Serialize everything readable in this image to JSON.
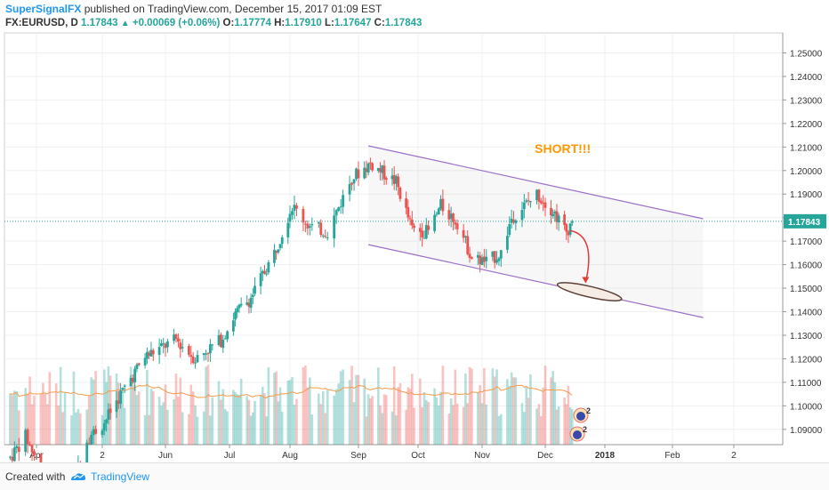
{
  "header": {
    "author": "SuperSignalFX",
    "published": "published on TradingView.com, December 15, 2017 01:09 EST",
    "symbol": "FX:EURUSD, D",
    "last": "1.17843",
    "change": "+0.00069 (+0.06%)",
    "open_label": "O:",
    "open": "1.17774",
    "high_label": "H:",
    "high": "1.17910",
    "low_label": "L:",
    "low": "1.17647",
    "close_label": "C:",
    "close": "1.17843"
  },
  "footer": {
    "created_with": "Created with",
    "brand": "TradingView"
  },
  "colors": {
    "up": "#26a69a",
    "down": "#ef5350",
    "channel": "#9c6fc9",
    "ma": "#f79a4a",
    "annotation": "#ff9800",
    "arrow": "#e53935",
    "last_price_tag": "#26a69a"
  },
  "chart_data": {
    "type": "candlestick",
    "symbol": "FX:EURUSD",
    "interval": "D",
    "x_ticks": [
      "Apr",
      "2",
      "Jun",
      "Jul",
      "Aug",
      "Sep",
      "Oct",
      "Nov",
      "Dec",
      "2018",
      "Feb",
      "2"
    ],
    "y_ticks": [
      "1.25000",
      "1.24000",
      "1.23000",
      "1.22000",
      "1.21000",
      "1.20000",
      "1.19000",
      "1.18000",
      "1.17000",
      "1.16000",
      "1.15000",
      "1.14000",
      "1.13000",
      "1.12000",
      "1.11000",
      "1.10000",
      "1.09000"
    ],
    "ylim": [
      1.0835,
      1.2585
    ],
    "last_price": "1.17843",
    "annotation": "SHORT!!!",
    "channel": {
      "upper": [
        [
          "2017-09-06",
          1.2105
        ],
        [
          "2018-02-15",
          1.1795
        ]
      ],
      "lower": [
        [
          "2017-09-06",
          1.1685
        ],
        [
          "2018-02-15",
          1.1375
        ]
      ]
    },
    "target_zone": {
      "date": "2017-12-24",
      "price": 1.1485
    },
    "indicators": [
      "volume",
      "volume moving average"
    ],
    "event_icons": [
      {
        "label": "2"
      },
      {
        "label": "2"
      }
    ]
  }
}
